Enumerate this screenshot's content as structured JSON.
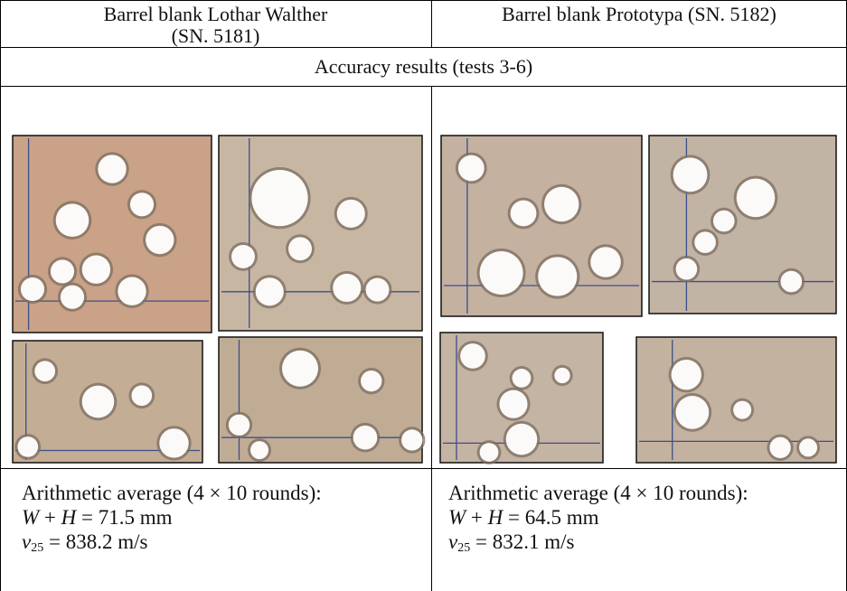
{
  "table": {
    "header": [
      [
        "Barrel blank Lothar Walther",
        "(SN. 5181)"
      ],
      [
        "Barrel blank Prototypa (SN. 5182)"
      ]
    ],
    "section_title": "Accuracy results (tests 3-6)",
    "results": [
      {
        "caption": "Arithmetic average (4 × 10 rounds):",
        "w_h": {
          "w": "W",
          "plus": "+",
          "h": "H",
          "value": "= 71.5 mm"
        },
        "velocity": {
          "symbol": "v",
          "subscript": "25",
          "value": "= 838.2 m/s"
        }
      },
      {
        "caption": "Arithmetic average (4 × 10 rounds):",
        "w_h": {
          "w": "W",
          "plus": "+",
          "h": "H",
          "value": "= 64.5 mm"
        },
        "velocity": {
          "symbol": "v",
          "subscript": "25",
          "value": "= 832.1 m/s"
        }
      }
    ]
  }
}
